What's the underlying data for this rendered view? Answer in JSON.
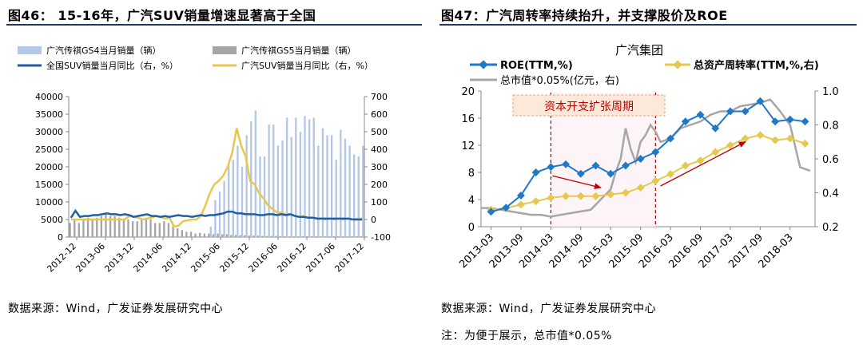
{
  "left": {
    "title": "图46： 15-16年，广汽SUV销量增速显著高于全国",
    "source": "数据来源：Wind，广发证券发展研究中心",
    "legend": {
      "gs4": "广汽传祺GS4当月销量（辆）",
      "gs5": "广汽传祺GS5当月销量（辆）",
      "national": "全国SUV销量当月同比（右，%）",
      "gac": "广汽SUV销量当月同比（右，%）"
    }
  },
  "right": {
    "title": "图47：广汽周转率持续抬升，并支撑股价及ROE",
    "source": "数据来源：Wind，广发证券发展研究中心",
    "note": "注：为便于展示，总市值*0.05%",
    "annotation": "资本开支扩张周期",
    "legend": {
      "roe": "ROE(TTM,%)",
      "turnover": "总资产周转率(TTM,%,右)",
      "mcap": "总市值*0.05%(亿元，右)"
    }
  },
  "colors": {
    "gs4": "#b4c7e7",
    "gs5": "#a6a6a6",
    "national": "#1f5fa6",
    "gac": "#e6c84f",
    "roe": "#1f78c8",
    "turnover": "#e6c84f",
    "mcap": "#a6a6a6",
    "arrow": "#c00000",
    "rule": "#1f3864"
  },
  "chart_data": [
    {
      "type": "bar",
      "xlabel": "",
      "ylabel": "",
      "x_tick_labels": [
        "2012-12",
        "2013-06",
        "2013-12",
        "2014-06",
        "2014-12",
        "2015-06",
        "2015-12",
        "2016-06",
        "2016-12",
        "2017-06",
        "2017-12"
      ],
      "y_left_ticks": [
        "0",
        "5000",
        "10000",
        "15000",
        "20000",
        "25000",
        "30000",
        "35000",
        "40000"
      ],
      "y_right_ticks": [
        "-100",
        "0",
        "100",
        "200",
        "300",
        "400",
        "500",
        "600",
        "700"
      ],
      "ylim_left": [
        0,
        40000
      ],
      "ylim_right": [
        -100,
        700
      ],
      "series": [
        {
          "name": "广汽传祺GS4当月销量（辆）",
          "axis": "left",
          "kind": "bar",
          "values": [
            0,
            0,
            0,
            0,
            0,
            0,
            0,
            0,
            0,
            0,
            0,
            0,
            0,
            0,
            0,
            0,
            0,
            0,
            0,
            0,
            0,
            0,
            0,
            0,
            0,
            0,
            0,
            0,
            0,
            0,
            0,
            3000,
            10500,
            13000,
            16000,
            20500,
            22000,
            26000,
            20000,
            29000,
            33000,
            36000,
            23000,
            23000,
            32000,
            32000,
            26000,
            27500,
            34000,
            28500,
            34000,
            30000,
            34500,
            33500,
            34000,
            26000,
            31000,
            29000,
            29000,
            22000,
            30500,
            28000,
            26000,
            23500,
            23000,
            26000
          ]
        },
        {
          "name": "广汽传祺GS5当月销量（辆）",
          "axis": "left",
          "kind": "bar",
          "values": [
            4000,
            5000,
            4000,
            5000,
            5500,
            5000,
            5500,
            6000,
            6500,
            6000,
            6000,
            5500,
            5000,
            5000,
            4500,
            4500,
            5000,
            5500,
            5000,
            4000,
            4000,
            4500,
            4000,
            3000,
            2500,
            2000,
            1500,
            1500,
            1000,
            1200,
            1000,
            1000,
            800,
            1000,
            800,
            800,
            600,
            600,
            500,
            500,
            400,
            400,
            400,
            300,
            300,
            300,
            300,
            200,
            200,
            200,
            200,
            200,
            200,
            200,
            200,
            200,
            200,
            200,
            200,
            200,
            200,
            200,
            200,
            200,
            200,
            200
          ]
        },
        {
          "name": "全国SUV销量当月同比（右，%）",
          "axis": "right",
          "kind": "line",
          "values": [
            10,
            50,
            15,
            20,
            20,
            25,
            25,
            30,
            35,
            30,
            30,
            25,
            30,
            25,
            15,
            20,
            25,
            30,
            20,
            20,
            15,
            20,
            15,
            20,
            25,
            20,
            20,
            15,
            20,
            25,
            20,
            25,
            25,
            30,
            35,
            45,
            45,
            35,
            35,
            30,
            30,
            30,
            25,
            25,
            30,
            30,
            25,
            30,
            25,
            30,
            20,
            15,
            15,
            10,
            10,
            5,
            5,
            5,
            5,
            5,
            5,
            5,
            5,
            0,
            0,
            0
          ]
        },
        {
          "name": "广汽SUV销量当月同比（右，%）",
          "axis": "right",
          "kind": "line",
          "values": [
            0,
            0,
            0,
            0,
            0,
            0,
            0,
            0,
            0,
            0,
            0,
            0,
            0,
            20,
            15,
            10,
            0,
            5,
            10,
            20,
            15,
            5,
            10,
            -40,
            -35,
            -10,
            -5,
            0,
            0,
            20,
            80,
            150,
            200,
            220,
            250,
            300,
            380,
            520,
            420,
            360,
            220,
            200,
            150,
            120,
            80,
            60,
            40,
            40,
            30,
            30,
            20,
            15,
            20,
            10,
            10,
            5,
            5,
            0,
            5,
            0,
            5,
            0,
            5,
            0,
            5,
            5
          ]
        }
      ]
    },
    {
      "type": "line",
      "title": "广汽集团",
      "xlabel": "",
      "ylabel": "",
      "x_tick_labels": [
        "2013-03",
        "2013-09",
        "2014-03",
        "2014-09",
        "2015-03",
        "2015-09",
        "2016-03",
        "2016-09",
        "2017-03",
        "2017-09",
        "2018-03"
      ],
      "y_left_ticks": [
        "0",
        "4",
        "8",
        "12",
        "16",
        "20"
      ],
      "y_right_ticks": [
        "0.2",
        "0.4",
        "0.6",
        "0.8",
        "1.0"
      ],
      "ylim_left": [
        0,
        20
      ],
      "ylim_right": [
        0.2,
        1.0
      ],
      "series": [
        {
          "name": "ROE(TTM,%)",
          "axis": "left",
          "kind": "line-marker",
          "x": [
            "2013-03",
            "2013-06",
            "2013-09",
            "2013-12",
            "2014-03",
            "2014-06",
            "2014-09",
            "2014-12",
            "2015-03",
            "2015-06",
            "2015-09",
            "2015-12",
            "2016-03",
            "2016-06",
            "2016-09",
            "2016-12",
            "2017-03",
            "2017-06",
            "2017-09",
            "2017-12",
            "2018-03",
            "2018-06"
          ],
          "values": [
            2.2,
            2.8,
            4.6,
            8.0,
            8.8,
            9.2,
            7.8,
            9.0,
            7.8,
            9.0,
            10.0,
            11.0,
            13.0,
            15.5,
            16.5,
            14.5,
            17.0,
            17.0,
            18.5,
            15.5,
            15.8,
            15.5
          ]
        },
        {
          "name": "总资产周转率(TTM,%,右)",
          "axis": "right",
          "kind": "line-marker",
          "x": [
            "2013-03",
            "2013-06",
            "2013-09",
            "2013-12",
            "2014-03",
            "2014-06",
            "2014-09",
            "2014-12",
            "2015-03",
            "2015-06",
            "2015-09",
            "2015-12",
            "2016-03",
            "2016-06",
            "2016-09",
            "2016-12",
            "2017-03",
            "2017-06",
            "2017-09",
            "2017-12",
            "2018-03",
            "2018-06"
          ],
          "values": [
            0.3,
            0.31,
            0.33,
            0.35,
            0.37,
            0.38,
            0.38,
            0.38,
            0.39,
            0.4,
            0.43,
            0.47,
            0.51,
            0.56,
            0.59,
            0.64,
            0.68,
            0.72,
            0.74,
            0.71,
            0.72,
            0.69
          ]
        },
        {
          "name": "总市值*0.05%(亿元，右)",
          "axis": "right",
          "kind": "line",
          "x": [
            "2013-01",
            "2013-03",
            "2013-05",
            "2013-07",
            "2013-09",
            "2013-11",
            "2014-01",
            "2014-03",
            "2014-05",
            "2014-07",
            "2014-09",
            "2014-11",
            "2015-01",
            "2015-03",
            "2015-04",
            "2015-05",
            "2015-06",
            "2015-07",
            "2015-08",
            "2015-09",
            "2015-10",
            "2015-11",
            "2015-12",
            "2016-01",
            "2016-03",
            "2016-05",
            "2016-07",
            "2016-09",
            "2016-11",
            "2017-01",
            "2017-03",
            "2017-05",
            "2017-07",
            "2017-09",
            "2017-11",
            "2018-01",
            "2018-03",
            "2018-05",
            "2018-07"
          ],
          "values": [
            0.31,
            0.31,
            0.3,
            0.29,
            0.28,
            0.27,
            0.27,
            0.26,
            0.27,
            0.28,
            0.29,
            0.3,
            0.36,
            0.42,
            0.52,
            0.6,
            0.78,
            0.66,
            0.58,
            0.7,
            0.74,
            0.8,
            0.76,
            0.7,
            0.72,
            0.78,
            0.8,
            0.82,
            0.86,
            0.88,
            0.88,
            0.91,
            0.92,
            0.93,
            0.95,
            0.88,
            0.8,
            0.55,
            0.53
          ]
        }
      ]
    }
  ]
}
